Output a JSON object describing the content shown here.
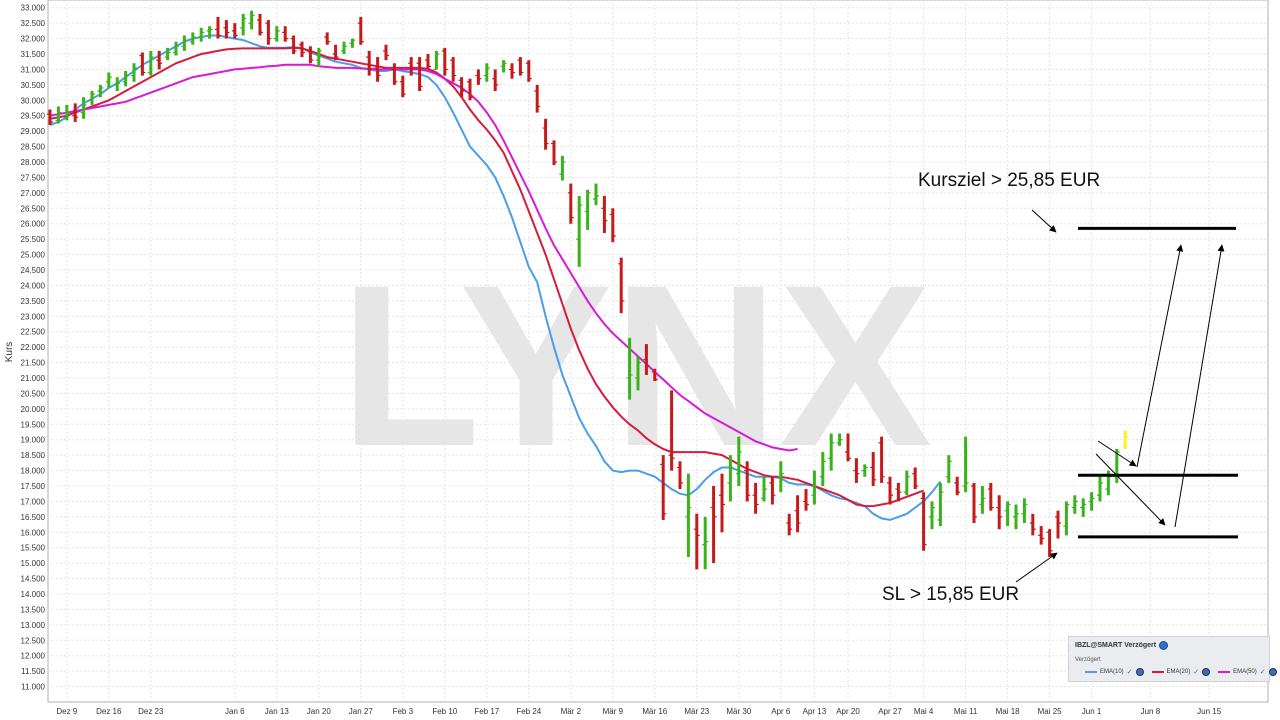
{
  "chart_data": {
    "type": "candlestick",
    "ylabel": "Kurs",
    "ylim": [
      10.5,
      33.25
    ],
    "y_ticks": [
      "11.000",
      "11.500",
      "12.000",
      "12.500",
      "13.000",
      "13.500",
      "14.000",
      "14.500",
      "15.000",
      "15.500",
      "16.000",
      "16.500",
      "17.000",
      "17.500",
      "18.000",
      "18.500",
      "19.000",
      "19.500",
      "20.000",
      "20.500",
      "21.000",
      "21.500",
      "22.000",
      "22.500",
      "23.000",
      "23.500",
      "24.000",
      "24.500",
      "25.000",
      "25.500",
      "26.000",
      "26.500",
      "27.000",
      "27.500",
      "28.000",
      "28.500",
      "29.000",
      "29.500",
      "30.000",
      "30.500",
      "31.000",
      "31.500",
      "32.000",
      "32.500",
      "33.000"
    ],
    "x_ticks": [
      "Dez 9",
      "Dez 16",
      "Dez 23",
      "Jan 6",
      "Jan 13",
      "Jan 20",
      "Jan 27",
      "Feb 3",
      "Feb 10",
      "Feb 17",
      "Feb 24",
      "Mär 2",
      "Mär 9",
      "Mär 16",
      "Mär 23",
      "Mär 30",
      "Apr 6",
      "Apr 13",
      "Apr 20",
      "Apr 27",
      "Mai 4",
      "Mai 11",
      "Mai 18",
      "Mai 25",
      "Jun 1",
      "Jun 8",
      "Jun 15"
    ],
    "x_tick_index": [
      2,
      7,
      12,
      22,
      27,
      32,
      37,
      42,
      47,
      52,
      57,
      62,
      67,
      72,
      77,
      82,
      87,
      91,
      95,
      100,
      104,
      109,
      114,
      119,
      124,
      131,
      138
    ],
    "watermark": "LYNX",
    "series": [
      {
        "name": "EMA(10)",
        "color": "#4a9ee8",
        "values": [
          29.2,
          29.3,
          29.45,
          29.7,
          29.9,
          30.05,
          30.2,
          30.4,
          30.55,
          30.75,
          30.95,
          31.15,
          31.3,
          31.45,
          31.6,
          31.75,
          31.9,
          32.0,
          32.05,
          32.1,
          32.1,
          32.05,
          32.0,
          31.95,
          31.85,
          31.75,
          31.7,
          31.7,
          31.7,
          31.72,
          31.7,
          31.55,
          31.45,
          31.35,
          31.25,
          31.2,
          31.15,
          31.05,
          31.0,
          30.95,
          30.95,
          31.0,
          30.95,
          30.9,
          30.85,
          30.75,
          30.5,
          30.1,
          29.6,
          29.05,
          28.5,
          28.2,
          27.9,
          27.5,
          26.9,
          26.2,
          25.4,
          24.6,
          24.1,
          23.0,
          22.0,
          21.1,
          20.4,
          19.7,
          19.2,
          18.8,
          18.3,
          18.0,
          17.95,
          18.0,
          18.0,
          17.9,
          17.8,
          17.6,
          17.4,
          17.25,
          17.2,
          17.4,
          17.7,
          17.95,
          18.1,
          18.1,
          18.0,
          17.9,
          17.8,
          17.8,
          17.8,
          17.75,
          17.6,
          17.55,
          17.55,
          17.5,
          17.35,
          17.2,
          17.1,
          17.05,
          16.95,
          16.85,
          16.6,
          16.45,
          16.4,
          16.5,
          16.6,
          16.8,
          17.0,
          17.3,
          17.65
        ]
      },
      {
        "name": "EMA(20)",
        "color": "#d81b3b",
        "values": [
          29.4,
          29.45,
          29.5,
          29.6,
          29.7,
          29.8,
          29.9,
          30.0,
          30.15,
          30.3,
          30.45,
          30.6,
          30.75,
          30.9,
          31.05,
          31.2,
          31.3,
          31.4,
          31.5,
          31.55,
          31.6,
          31.65,
          31.67,
          31.68,
          31.68,
          31.68,
          31.68,
          31.68,
          31.68,
          31.7,
          31.68,
          31.6,
          31.5,
          31.4,
          31.35,
          31.3,
          31.25,
          31.2,
          31.15,
          31.1,
          31.05,
          31.05,
          31.05,
          31.05,
          31.05,
          31.02,
          30.9,
          30.7,
          30.45,
          30.1,
          29.7,
          29.35,
          29.05,
          28.7,
          28.3,
          27.7,
          27.1,
          26.4,
          25.7,
          25.0,
          24.2,
          23.4,
          22.6,
          21.9,
          21.3,
          20.8,
          20.4,
          20.05,
          19.75,
          19.5,
          19.3,
          19.05,
          18.85,
          18.7,
          18.6,
          18.6,
          18.6,
          18.6,
          18.6,
          18.55,
          18.5,
          18.35,
          18.2,
          18.05,
          17.95,
          17.85,
          17.8,
          17.8,
          17.75,
          17.7,
          17.6,
          17.5,
          17.4,
          17.3,
          17.2,
          17.05,
          16.9,
          16.85,
          16.85,
          16.9,
          16.95,
          17.05,
          17.15,
          17.25,
          17.35
        ]
      },
      {
        "name": "EMA(50)",
        "color": "#d61ad6",
        "values": [
          29.5,
          29.55,
          29.6,
          29.65,
          29.7,
          29.75,
          29.8,
          29.85,
          29.9,
          29.95,
          30.05,
          30.15,
          30.25,
          30.35,
          30.45,
          30.55,
          30.65,
          30.75,
          30.8,
          30.85,
          30.9,
          30.95,
          31.0,
          31.02,
          31.05,
          31.07,
          31.1,
          31.12,
          31.15,
          31.15,
          31.15,
          31.15,
          31.1,
          31.08,
          31.05,
          31.05,
          31.05,
          31.03,
          31.02,
          31.0,
          31.0,
          31.0,
          31.0,
          31.0,
          31.0,
          30.95,
          30.85,
          30.7,
          30.55,
          30.4,
          30.2,
          29.95,
          29.6,
          29.2,
          28.7,
          28.15,
          27.6,
          27.05,
          26.45,
          25.85,
          25.3,
          24.85,
          24.4,
          23.95,
          23.5,
          23.1,
          22.75,
          22.45,
          22.2,
          21.95,
          21.7,
          21.45,
          21.2,
          20.95,
          20.7,
          20.45,
          20.25,
          20.05,
          19.85,
          19.7,
          19.55,
          19.4,
          19.25,
          19.1,
          18.95,
          18.85,
          18.75,
          18.7,
          18.65,
          18.7
        ]
      },
      {
        "name": "OHLC",
        "values": [
          [
            29.55,
            29.7,
            29.2,
            29.3
          ],
          [
            29.35,
            29.8,
            29.25,
            29.6
          ],
          [
            29.45,
            29.85,
            29.35,
            29.55
          ],
          [
            29.5,
            29.9,
            29.3,
            29.45
          ],
          [
            29.6,
            30.1,
            29.4,
            29.85
          ],
          [
            30.0,
            30.3,
            29.85,
            30.2
          ],
          [
            30.3,
            30.5,
            30.1,
            30.4
          ],
          [
            30.6,
            30.9,
            30.4,
            30.75
          ],
          [
            30.5,
            30.75,
            30.3,
            30.55
          ],
          [
            30.6,
            30.95,
            30.45,
            30.8
          ],
          [
            30.8,
            31.2,
            30.6,
            31.05
          ],
          [
            31.45,
            31.55,
            30.8,
            30.9
          ],
          [
            30.9,
            31.6,
            30.8,
            31.4
          ],
          [
            31.3,
            31.6,
            31.0,
            31.2
          ],
          [
            31.4,
            31.7,
            31.3,
            31.55
          ],
          [
            31.55,
            31.9,
            31.45,
            31.75
          ],
          [
            31.75,
            32.1,
            31.6,
            31.95
          ],
          [
            31.9,
            32.2,
            31.8,
            32.05
          ],
          [
            32.05,
            32.35,
            31.9,
            32.2
          ],
          [
            32.25,
            32.4,
            32.0,
            32.3
          ],
          [
            32.3,
            32.7,
            32.0,
            32.1
          ],
          [
            32.35,
            32.6,
            32.0,
            32.2
          ],
          [
            32.25,
            32.5,
            32.0,
            32.1
          ],
          [
            32.35,
            32.8,
            32.1,
            32.65
          ],
          [
            32.5,
            32.9,
            32.3,
            32.75
          ],
          [
            32.6,
            32.8,
            32.1,
            32.2
          ],
          [
            32.5,
            32.6,
            31.8,
            32.0
          ],
          [
            32.0,
            32.4,
            31.9,
            32.25
          ],
          [
            32.2,
            32.4,
            31.9,
            32.0
          ],
          [
            32.0,
            32.1,
            31.5,
            31.6
          ],
          [
            31.8,
            31.9,
            31.4,
            31.55
          ],
          [
            31.6,
            31.75,
            31.2,
            31.3
          ],
          [
            31.3,
            31.7,
            31.1,
            31.6
          ],
          [
            32.05,
            32.2,
            31.8,
            31.9
          ],
          [
            31.5,
            31.8,
            31.3,
            31.4
          ],
          [
            31.6,
            31.9,
            31.5,
            31.75
          ],
          [
            31.85,
            32.0,
            31.7,
            31.95
          ],
          [
            32.5,
            32.7,
            31.8,
            31.9
          ],
          [
            31.4,
            31.6,
            30.8,
            31.0
          ],
          [
            31.05,
            31.4,
            30.6,
            30.8
          ],
          [
            31.6,
            31.8,
            31.3,
            31.45
          ],
          [
            31.0,
            31.2,
            30.5,
            30.6
          ],
          [
            30.6,
            30.8,
            30.1,
            30.2
          ],
          [
            31.2,
            31.4,
            30.8,
            31.0
          ],
          [
            31.2,
            31.4,
            30.3,
            30.45
          ],
          [
            31.3,
            31.5,
            31.0,
            31.1
          ],
          [
            31.0,
            31.6,
            31.0,
            31.5
          ],
          [
            31.6,
            31.7,
            30.8,
            31.0
          ],
          [
            31.3,
            31.4,
            30.6,
            30.8
          ],
          [
            30.65,
            30.75,
            30.1,
            30.3
          ],
          [
            30.6,
            30.7,
            30.0,
            30.1
          ],
          [
            30.8,
            31.0,
            30.5,
            30.7
          ],
          [
            30.8,
            31.2,
            30.6,
            31.05
          ],
          [
            30.7,
            31.0,
            30.3,
            30.5
          ],
          [
            31.1,
            31.3,
            30.9,
            31.2
          ],
          [
            31.0,
            31.2,
            30.7,
            30.9
          ],
          [
            31.3,
            31.4,
            30.8,
            30.9
          ],
          [
            31.2,
            31.3,
            30.6,
            30.7
          ],
          [
            30.3,
            30.5,
            29.6,
            29.8
          ],
          [
            29.1,
            29.4,
            28.4,
            28.6
          ],
          [
            28.6,
            28.7,
            27.9,
            28.0
          ],
          [
            27.6,
            28.2,
            27.4,
            28.0
          ],
          [
            27.0,
            27.3,
            26.0,
            26.2
          ],
          [
            25.5,
            26.9,
            24.6,
            26.6
          ],
          [
            26.4,
            27.1,
            25.8,
            27.0
          ],
          [
            26.8,
            27.3,
            26.6,
            26.9
          ],
          [
            26.5,
            26.9,
            25.7,
            26.1
          ],
          [
            26.3,
            26.5,
            25.4,
            25.6
          ],
          [
            24.7,
            24.9,
            23.1,
            23.5
          ],
          [
            21.0,
            22.3,
            20.3,
            21.1
          ],
          [
            21.0,
            21.7,
            20.6,
            21.5
          ],
          [
            21.6,
            22.1,
            21.1,
            21.4
          ],
          [
            21.2,
            21.3,
            20.9,
            20.95
          ],
          [
            18.2,
            18.5,
            16.4,
            16.6
          ],
          [
            18.5,
            20.6,
            18.0,
            18.4
          ],
          [
            18.1,
            18.3,
            17.4,
            17.6
          ],
          [
            16.5,
            17.9,
            15.2,
            16.8
          ],
          [
            16.1,
            16.6,
            14.8,
            15.9
          ],
          [
            15.6,
            16.5,
            14.8,
            15.7
          ],
          [
            16.8,
            17.5,
            15.0,
            16.5
          ],
          [
            17.2,
            17.9,
            16.0,
            16.9
          ],
          [
            17.6,
            18.5,
            17.0,
            18.1
          ],
          [
            17.9,
            19.1,
            17.5,
            18.6
          ],
          [
            18.0,
            18.3,
            17.0,
            17.2
          ],
          [
            17.2,
            17.6,
            16.6,
            16.9
          ],
          [
            17.1,
            17.8,
            17.0,
            17.4
          ],
          [
            17.6,
            17.8,
            16.9,
            17.2
          ],
          [
            17.8,
            18.3,
            17.3,
            17.9
          ],
          [
            16.3,
            16.6,
            15.9,
            16.1
          ],
          [
            16.7,
            17.2,
            16.0,
            16.3
          ],
          [
            17.0,
            17.4,
            16.7,
            16.9
          ],
          [
            17.2,
            18.0,
            16.9,
            17.5
          ],
          [
            17.8,
            18.6,
            17.5,
            18.3
          ],
          [
            18.4,
            19.2,
            18.0,
            18.9
          ],
          [
            18.9,
            19.2,
            18.8,
            19.0
          ],
          [
            18.6,
            19.2,
            18.3,
            18.4
          ],
          [
            18.0,
            18.4,
            17.6,
            17.9
          ],
          [
            18.0,
            18.2,
            17.8,
            18.1
          ],
          [
            18.1,
            18.6,
            17.5,
            17.7
          ],
          [
            18.9,
            19.1,
            17.6,
            17.8
          ],
          [
            17.6,
            17.8,
            16.9,
            17.2
          ],
          [
            17.4,
            17.6,
            17.0,
            17.3
          ],
          [
            17.3,
            18.0,
            17.2,
            17.8
          ],
          [
            17.9,
            18.1,
            17.4,
            17.5
          ],
          [
            17.1,
            17.3,
            15.4,
            15.6
          ],
          [
            16.5,
            17.0,
            16.1,
            16.8
          ],
          [
            16.4,
            17.6,
            16.2,
            17.3
          ],
          [
            17.8,
            18.5,
            17.6,
            18.3
          ],
          [
            17.6,
            17.8,
            17.2,
            17.3
          ],
          [
            17.5,
            19.1,
            17.3,
            17.6
          ],
          [
            17.5,
            17.6,
            16.3,
            16.5
          ],
          [
            16.9,
            17.5,
            16.6,
            17.1
          ],
          [
            17.4,
            17.6,
            16.7,
            16.8
          ],
          [
            16.8,
            17.2,
            16.1,
            16.5
          ],
          [
            16.7,
            17.0,
            16.2,
            16.9
          ],
          [
            16.5,
            16.9,
            16.1,
            16.6
          ],
          [
            16.6,
            17.1,
            16.3,
            16.9
          ],
          [
            16.3,
            16.6,
            15.9,
            16.1
          ],
          [
            15.9,
            16.2,
            15.6,
            15.8
          ],
          [
            16.0,
            16.1,
            15.2,
            15.4
          ],
          [
            16.5,
            16.7,
            15.8,
            16.3
          ],
          [
            16.2,
            17.0,
            15.9,
            16.9
          ],
          [
            16.8,
            17.2,
            16.6,
            17.0
          ],
          [
            16.8,
            17.1,
            16.5,
            16.9
          ],
          [
            17.0,
            17.3,
            16.7,
            17.1
          ],
          [
            17.2,
            17.8,
            17.0,
            17.6
          ],
          [
            17.4,
            18.0,
            17.2,
            17.8
          ],
          [
            17.8,
            18.7,
            17.6,
            18.6
          ],
          [
            18.8,
            19.3,
            18.7,
            19.1
          ]
        ]
      }
    ],
    "annotations": {
      "target_label": "Kursziel > 25,85 EUR",
      "stop_label": "SL > 15,85 EUR",
      "target_level": 25.85,
      "resistance_level": 17.85,
      "stop_level": 15.85
    },
    "legend": {
      "title": "IBZL@SMART Verzögert",
      "subtitle": "Verzögert",
      "items": [
        "EMA(10)",
        "EMA(20)",
        "EMA(50)"
      ]
    }
  }
}
